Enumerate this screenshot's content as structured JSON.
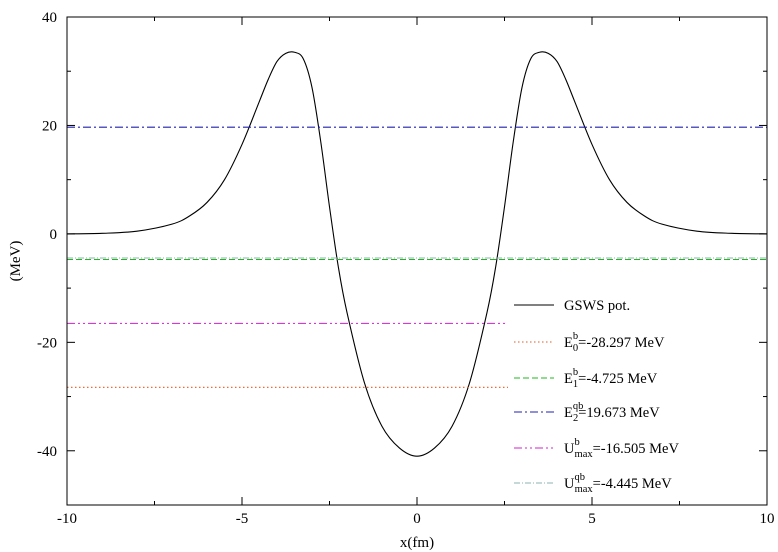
{
  "chart_data": {
    "type": "line",
    "xlabel": "x(fm)",
    "ylabel": "(MeV)",
    "xlim": [
      -10,
      10
    ],
    "ylim": [
      -50,
      40
    ],
    "xticks": [
      -10,
      -5,
      0,
      5,
      10
    ],
    "yticks": [
      -40,
      -20,
      0,
      20,
      40
    ],
    "xtick_labels": [
      "-10",
      "-5",
      "0",
      "5",
      "10"
    ],
    "ytick_labels": [
      "-40",
      "-20",
      "0",
      "20",
      "40"
    ],
    "grid": false,
    "legend_position": "bottom-right",
    "series": [
      {
        "key": "gsws",
        "legend_base": "GSWS pot.",
        "legend_sup": "",
        "legend_sub": "",
        "legend_rest": "",
        "color": "#000000",
        "dash": "",
        "x": [
          -10,
          -9,
          -8,
          -7,
          -6.5,
          -6,
          -5.5,
          -5,
          -4.5,
          -4.25,
          -4,
          -3.75,
          -3.5,
          -3.25,
          -3,
          -2.75,
          -2.5,
          -2.25,
          -2,
          -1.5,
          -1,
          -0.5,
          0,
          0.5,
          1,
          1.5,
          2,
          2.25,
          2.5,
          2.75,
          3,
          3.25,
          3.5,
          3.75,
          4,
          4.25,
          4.5,
          5,
          5.5,
          6,
          6.5,
          7,
          8,
          9,
          10
        ],
        "y": [
          0,
          0.1,
          0.5,
          1.8,
          3.3,
          5.8,
          10,
          16.5,
          24.5,
          28.5,
          31.8,
          33.3,
          33.5,
          32.3,
          27,
          17,
          5,
          -6,
          -14.5,
          -27.5,
          -35.5,
          -39.5,
          -41,
          -39.5,
          -35.5,
          -27.5,
          -14.5,
          -6,
          5,
          17,
          27,
          32.3,
          33.5,
          33.3,
          31.8,
          28.5,
          24.5,
          16.5,
          10,
          5.8,
          3.3,
          1.8,
          0.5,
          0.1,
          0
        ]
      },
      {
        "key": "e0",
        "legend_base": "E",
        "legend_sup": "b",
        "legend_sub": "0",
        "legend_rest": "=-28.297 MeV",
        "color": "#e8581e",
        "dash": "1.5,2.5",
        "x": [
          -10,
          2.6
        ],
        "y": [
          -28.297,
          -28.297
        ]
      },
      {
        "key": "e1",
        "legend_base": "E",
        "legend_sup": "b",
        "legend_sub": "1",
        "legend_rest": "=-4.725 MeV",
        "color": "#1fb81f",
        "dash": "6,3",
        "x": [
          -10,
          10
        ],
        "y": [
          -4.725,
          -4.725
        ]
      },
      {
        "key": "e2",
        "legend_base": "E",
        "legend_sup": "qb",
        "legend_sub": "2",
        "legend_rest": "=19.673 MeV",
        "color": "#2020b0",
        "dash": "8,3,2,3",
        "x": [
          -10,
          10
        ],
        "y": [
          19.673,
          19.673
        ]
      },
      {
        "key": "umaxb",
        "legend_base": "U",
        "legend_sup": "b",
        "legend_sub": "max",
        "legend_rest": "=-16.505 MeV",
        "color": "#cc20cc",
        "dash": "8,3,2,3,2,3",
        "x": [
          -10,
          2.6
        ],
        "y": [
          -16.505,
          -16.505
        ]
      },
      {
        "key": "umaxqb",
        "legend_base": "U",
        "legend_sup": "qb",
        "legend_sub": "max",
        "legend_rest": "=-4.445 MeV",
        "color": "#8fb0b0",
        "dash": "6,2,1,2",
        "x": [
          -10,
          10
        ],
        "y": [
          -4.445,
          -4.445
        ]
      }
    ]
  }
}
